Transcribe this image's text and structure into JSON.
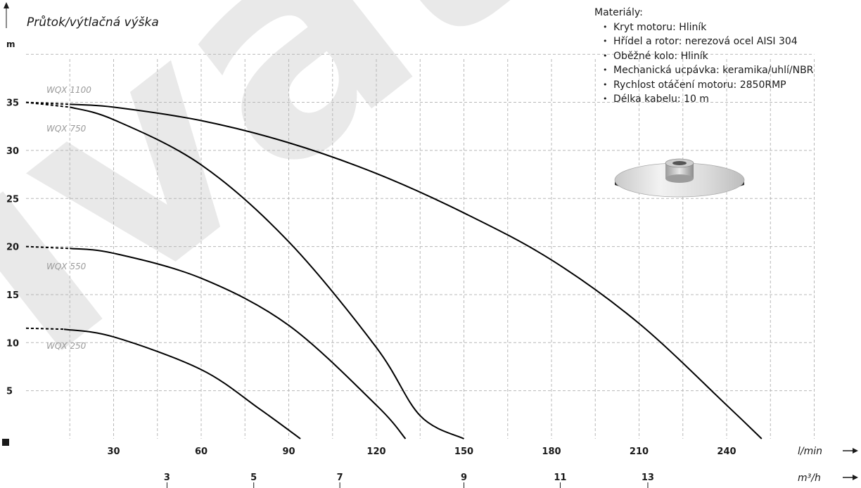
{
  "chart_data": {
    "type": "line",
    "title": "Průtok/výtlačná výška",
    "ylabel": "m",
    "xlabel": "l/min",
    "x2label": "m³/h",
    "xlim": [
      0,
      270
    ],
    "ylim": [
      0,
      40
    ],
    "x_ticks": [
      30,
      60,
      90,
      120,
      150,
      180,
      210,
      240
    ],
    "y_ticks": [
      5,
      10,
      15,
      20,
      25,
      30,
      35
    ],
    "x2_ticks": [
      {
        "value": "3",
        "x": 48.3
      },
      {
        "value": "5",
        "x": 78.0
      },
      {
        "value": "7",
        "x": 107.5
      },
      {
        "value": "9",
        "x": 150.0
      },
      {
        "value": "11",
        "x": 183.0
      },
      {
        "value": "13",
        "x": 213.0
      }
    ],
    "grid": true,
    "series": [
      {
        "name": "WQX 1100",
        "dashed_to": 15,
        "points": [
          [
            0,
            35.0
          ],
          [
            15,
            34.8
          ],
          [
            30,
            34.5
          ],
          [
            60,
            33.1
          ],
          [
            90,
            30.8
          ],
          [
            120,
            27.6
          ],
          [
            150,
            23.5
          ],
          [
            180,
            18.6
          ],
          [
            210,
            12.0
          ],
          [
            240,
            3.5
          ],
          [
            252,
            0
          ]
        ]
      },
      {
        "name": "WQX 750",
        "dashed_to": 15,
        "points": [
          [
            0,
            35.0
          ],
          [
            15,
            34.5
          ],
          [
            30,
            33.2
          ],
          [
            60,
            28.5
          ],
          [
            90,
            20.5
          ],
          [
            120,
            9.5
          ],
          [
            135,
            2.4
          ],
          [
            150,
            0
          ]
        ]
      },
      {
        "name": "WQX 550",
        "dashed_to": 15,
        "points": [
          [
            0,
            20.0
          ],
          [
            15,
            19.8
          ],
          [
            30,
            19.3
          ],
          [
            60,
            16.7
          ],
          [
            90,
            11.8
          ],
          [
            120,
            3.5
          ],
          [
            130,
            0
          ]
        ]
      },
      {
        "name": "WQX 250",
        "dashed_to": 13,
        "points": [
          [
            0,
            11.5
          ],
          [
            13,
            11.4
          ],
          [
            30,
            10.6
          ],
          [
            60,
            7.2
          ],
          [
            80,
            3.1
          ],
          [
            94,
            0
          ]
        ]
      }
    ],
    "annotations": [
      "WQX 1100",
      "WQX 750",
      "WQX 550",
      "WQX 250"
    ]
  },
  "materials": {
    "heading": "Materiály:",
    "items": [
      "Kryt motoru: Hliník",
      "Hřídel a rotor: nerezová ocel AISI 304",
      "Oběžné kolo: Hliník",
      "Mechanická ucpávka: keramika/uhlí/NBR",
      "Rychlost otáčení motoru: 2850RMP",
      "Délka kabelu: 10 m"
    ]
  },
  "watermark": "ivato",
  "icons": {
    "impeller": "impeller-image"
  }
}
